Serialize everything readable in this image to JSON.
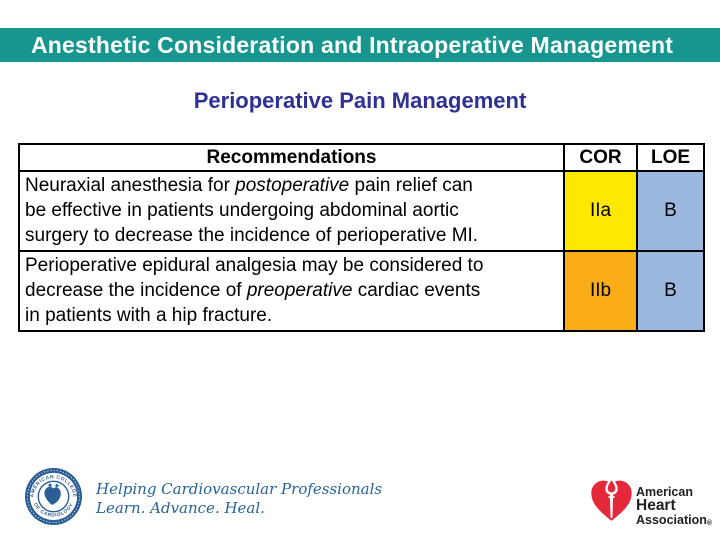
{
  "slide": {
    "title": "Anesthetic Consideration and Intraoperative Management",
    "subtitle": "Perioperative Pain Management"
  },
  "colors": {
    "title_bar": "#17968F",
    "subtitle_text": "#2E3192",
    "table_border": "#000000",
    "acc_blue": "#2B5E95",
    "acc_tagline_blue": "#26639B",
    "aha_red": "#E4283A",
    "aha_text": "#231F20"
  },
  "table": {
    "headers": [
      "Recommendations",
      "COR",
      "LOE"
    ],
    "rows": [
      {
        "lines": [
          [
            {
              "t": "Neuraxial anesthesia for "
            },
            {
              "t": "postoperative",
              "i": true
            },
            {
              "t": " pain relief can"
            }
          ],
          [
            {
              "t": "be effective in patients undergoing abdominal aortic"
            }
          ],
          [
            {
              "t": "surgery to decrease the incidence of perioperative MI."
            }
          ]
        ],
        "cor": "IIa",
        "cor_color": "#FFE800",
        "loe": "B",
        "loe_color": "#9CB8DF"
      },
      {
        "lines": [
          [
            {
              "t": "Perioperative epidural analgesia may be considered to"
            }
          ],
          [
            {
              "t": "decrease the incidence of "
            },
            {
              "t": "preoperative",
              "i": true
            },
            {
              "t": " cardiac events"
            }
          ],
          [
            {
              "t": "in patients with a hip fracture."
            }
          ]
        ],
        "cor": "IIb",
        "cor_color": "#FBAD18",
        "loe": "B",
        "loe_color": "#9CB8DF"
      }
    ]
  },
  "footer": {
    "acc": {
      "seal_text_top": "AMERICAN COLLEGE",
      "seal_text_bottom": "OF CARDIOLOGY",
      "tagline_line1": "Helping Cardiovascular Professionals",
      "tagline_line2": "Learn. Advance. Heal."
    },
    "aha": {
      "line1": "American",
      "line2": "Heart",
      "line3": "Association",
      "registered": "®"
    }
  }
}
